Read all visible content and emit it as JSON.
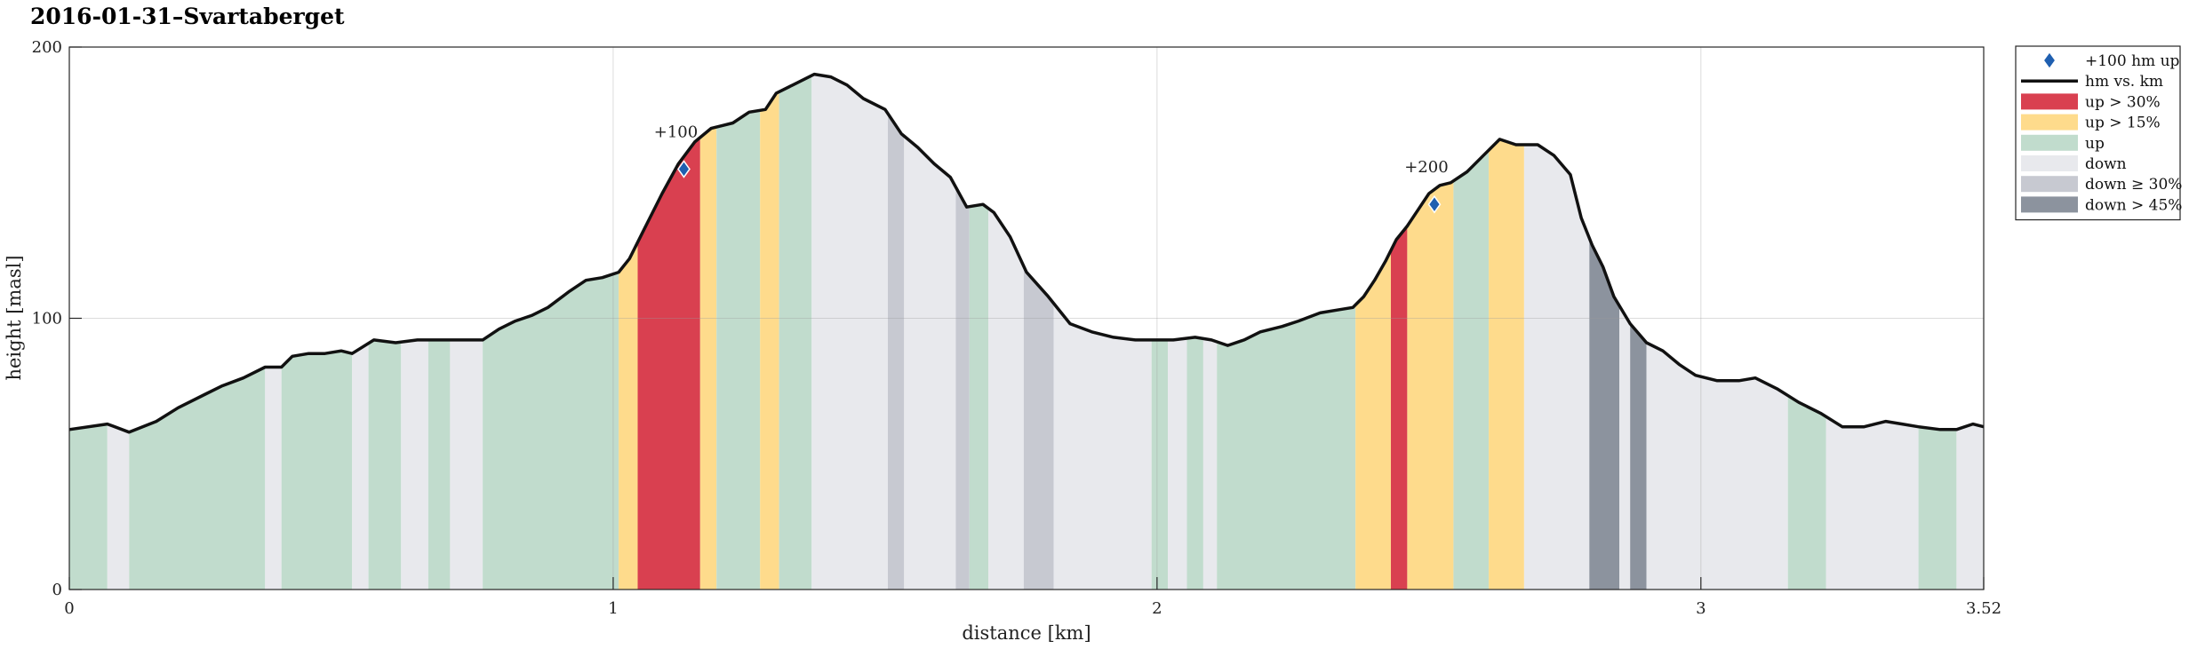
{
  "chart_data": {
    "type": "area",
    "title": "2016-01-31–Svartaberget",
    "xlabel": "distance [km]",
    "ylabel": "height [masl]",
    "xlim": [
      0,
      3.52
    ],
    "ylim": [
      0,
      200
    ],
    "xticks": [
      0,
      1,
      2,
      3,
      3.52
    ],
    "xtick_labels": [
      "0",
      "1",
      "2",
      "3",
      "3.52"
    ],
    "yticks": [
      0,
      100,
      200
    ],
    "ytick_labels": [
      "0",
      "100",
      "200"
    ],
    "grid": true,
    "legend_position": "right, outside plot, top",
    "colors": {
      "line": "#111111",
      "marker": "#1f5fb0",
      "up": "#c1dccd",
      "up15": "#fedb8c",
      "up30": "#d94050",
      "down": "#e8e9ed",
      "down30": "#c7c9d1",
      "down45": "#8c939e"
    },
    "legend": [
      {
        "key": "marker",
        "label": "+100 hm up"
      },
      {
        "key": "line",
        "label": "hm vs. km"
      },
      {
        "key": "up30",
        "label": "up > 30%"
      },
      {
        "key": "up15",
        "label": "up > 15%"
      },
      {
        "key": "up",
        "label": "up"
      },
      {
        "key": "down",
        "label": "down"
      },
      {
        "key": "down30",
        "label": "down ≥ 30%"
      },
      {
        "key": "down45",
        "label": "down > 45%"
      }
    ],
    "profile": {
      "x": [
        0,
        0.07,
        0.11,
        0.16,
        0.2,
        0.25,
        0.28,
        0.32,
        0.36,
        0.39,
        0.41,
        0.44,
        0.47,
        0.5,
        0.52,
        0.56,
        0.6,
        0.64,
        0.7,
        0.76,
        0.79,
        0.82,
        0.85,
        0.88,
        0.92,
        0.95,
        0.98,
        1.01,
        1.03,
        1.06,
        1.09,
        1.12,
        1.15,
        1.18,
        1.2,
        1.22,
        1.25,
        1.28,
        1.3,
        1.33,
        1.37,
        1.4,
        1.43,
        1.46,
        1.5,
        1.53,
        1.56,
        1.59,
        1.62,
        1.65,
        1.68,
        1.7,
        1.73,
        1.76,
        1.8,
        1.84,
        1.88,
        1.92,
        1.96,
        2.0,
        2.03,
        2.07,
        2.1,
        2.13,
        2.16,
        2.19,
        2.23,
        2.26,
        2.3,
        2.33,
        2.36,
        2.38,
        2.4,
        2.42,
        2.44,
        2.46,
        2.48,
        2.5,
        2.52,
        2.54,
        2.57,
        2.6,
        2.63,
        2.66,
        2.7,
        2.73,
        2.76,
        2.78,
        2.8,
        2.82,
        2.84,
        2.87,
        2.9,
        2.93,
        2.96,
        2.99,
        3.03,
        3.07,
        3.1,
        3.14,
        3.18,
        3.22,
        3.26,
        3.3,
        3.34,
        3.37,
        3.4,
        3.44,
        3.47,
        3.5,
        3.52
      ],
      "y": [
        59,
        61,
        58,
        62,
        67,
        72,
        75,
        78,
        82,
        82,
        86,
        87,
        87,
        88,
        87,
        92,
        91,
        92,
        92,
        92,
        96,
        99,
        101,
        104,
        110,
        114,
        115,
        117,
        122,
        134,
        146,
        157,
        165,
        170,
        171,
        172,
        176,
        177,
        183,
        186,
        190,
        189,
        186,
        181,
        177,
        168,
        163,
        157,
        152,
        141,
        142,
        139,
        130,
        117,
        108,
        98,
        95,
        93,
        92,
        92,
        92,
        93,
        92,
        90,
        92,
        95,
        97,
        99,
        102,
        103,
        104,
        108,
        114,
        121,
        129,
        134,
        140,
        146,
        149,
        150,
        154,
        160,
        166,
        164,
        164,
        160,
        153,
        137,
        127,
        119,
        108,
        98,
        91,
        88,
        83,
        79,
        77,
        77,
        78,
        74,
        69,
        65,
        60,
        60,
        62,
        61,
        60,
        59,
        59,
        61,
        60
      ]
    },
    "bands": [
      {
        "x0": 0.0,
        "x1": 0.07,
        "cat": "up"
      },
      {
        "x0": 0.07,
        "x1": 0.11,
        "cat": "down"
      },
      {
        "x0": 0.11,
        "x1": 0.36,
        "cat": "up"
      },
      {
        "x0": 0.36,
        "x1": 0.39,
        "cat": "down"
      },
      {
        "x0": 0.39,
        "x1": 0.52,
        "cat": "up"
      },
      {
        "x0": 0.52,
        "x1": 0.55,
        "cat": "down"
      },
      {
        "x0": 0.55,
        "x1": 0.61,
        "cat": "up"
      },
      {
        "x0": 0.61,
        "x1": 0.66,
        "cat": "down"
      },
      {
        "x0": 0.66,
        "x1": 0.7,
        "cat": "up"
      },
      {
        "x0": 0.7,
        "x1": 0.76,
        "cat": "down"
      },
      {
        "x0": 0.76,
        "x1": 1.01,
        "cat": "up"
      },
      {
        "x0": 1.01,
        "x1": 1.045,
        "cat": "up15"
      },
      {
        "x0": 1.045,
        "x1": 1.16,
        "cat": "up30"
      },
      {
        "x0": 1.16,
        "x1": 1.19,
        "cat": "up15"
      },
      {
        "x0": 1.19,
        "x1": 1.27,
        "cat": "up"
      },
      {
        "x0": 1.27,
        "x1": 1.305,
        "cat": "up15"
      },
      {
        "x0": 1.305,
        "x1": 1.365,
        "cat": "up"
      },
      {
        "x0": 1.365,
        "x1": 1.505,
        "cat": "down"
      },
      {
        "x0": 1.505,
        "x1": 1.535,
        "cat": "down30"
      },
      {
        "x0": 1.535,
        "x1": 1.63,
        "cat": "down"
      },
      {
        "x0": 1.63,
        "x1": 1.655,
        "cat": "down30"
      },
      {
        "x0": 1.655,
        "x1": 1.69,
        "cat": "up"
      },
      {
        "x0": 1.69,
        "x1": 1.755,
        "cat": "down"
      },
      {
        "x0": 1.755,
        "x1": 1.81,
        "cat": "down30"
      },
      {
        "x0": 1.81,
        "x1": 1.99,
        "cat": "down"
      },
      {
        "x0": 1.99,
        "x1": 2.02,
        "cat": "up"
      },
      {
        "x0": 2.02,
        "x1": 2.055,
        "cat": "down"
      },
      {
        "x0": 2.055,
        "x1": 2.085,
        "cat": "up"
      },
      {
        "x0": 2.085,
        "x1": 2.11,
        "cat": "down"
      },
      {
        "x0": 2.11,
        "x1": 2.365,
        "cat": "up"
      },
      {
        "x0": 2.365,
        "x1": 2.43,
        "cat": "up15"
      },
      {
        "x0": 2.43,
        "x1": 2.46,
        "cat": "up30"
      },
      {
        "x0": 2.46,
        "x1": 2.545,
        "cat": "up15"
      },
      {
        "x0": 2.545,
        "x1": 2.61,
        "cat": "up"
      },
      {
        "x0": 2.61,
        "x1": 2.675,
        "cat": "up15"
      },
      {
        "x0": 2.675,
        "x1": 2.795,
        "cat": "down"
      },
      {
        "x0": 2.795,
        "x1": 2.85,
        "cat": "down45"
      },
      {
        "x0": 2.85,
        "x1": 2.87,
        "cat": "down"
      },
      {
        "x0": 2.87,
        "x1": 2.9,
        "cat": "down45"
      },
      {
        "x0": 2.9,
        "x1": 3.16,
        "cat": "down"
      },
      {
        "x0": 3.16,
        "x1": 3.23,
        "cat": "up"
      },
      {
        "x0": 3.23,
        "x1": 3.4,
        "cat": "down"
      },
      {
        "x0": 3.4,
        "x1": 3.47,
        "cat": "up"
      },
      {
        "x0": 3.47,
        "x1": 3.52,
        "cat": "down"
      }
    ],
    "markers": [
      {
        "x": 1.13,
        "y": 155,
        "label": "+100"
      },
      {
        "x": 2.51,
        "y": 142,
        "label": "+200"
      }
    ]
  }
}
